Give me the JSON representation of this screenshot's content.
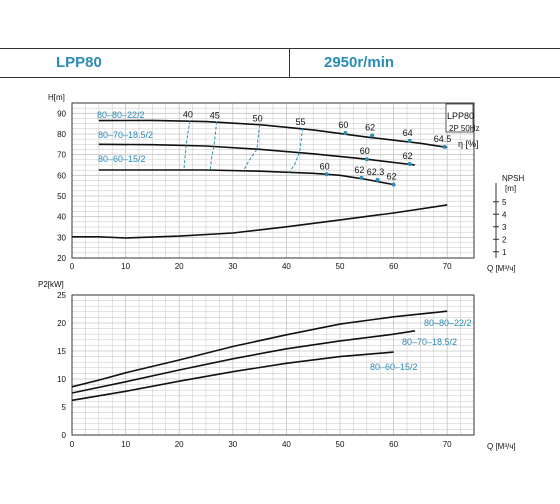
{
  "header": {
    "model": "LPP80",
    "speed": "2950r/min"
  },
  "legend_box": {
    "title": "LPP80",
    "subtitle": "2P  50Hz"
  },
  "colors": {
    "accent": "#2a8bb4",
    "curve": "#111111",
    "grid": "#c4c4c4"
  },
  "chart_data": [
    {
      "type": "line",
      "title": "",
      "ylabel": "H[m]",
      "xlabel": "Q [М³/ч]",
      "xlim": [
        0,
        75
      ],
      "ylim": [
        20,
        95
      ],
      "xticks": [
        "0",
        "10",
        "20",
        "30",
        "40",
        "50",
        "60",
        "70"
      ],
      "yticks": [
        "20",
        "30",
        "40",
        "50",
        "60",
        "70",
        "80",
        "90"
      ],
      "series": [
        {
          "name": "80–80–22/2",
          "x": [
            5,
            15,
            25,
            35,
            45,
            55,
            65,
            70
          ],
          "values": [
            86.5,
            86.6,
            86,
            84.5,
            82,
            78.5,
            75.5,
            73.5
          ]
        },
        {
          "name": "80–70–18.5/2",
          "x": [
            5,
            15,
            25,
            35,
            45,
            55,
            64
          ],
          "values": [
            75,
            74.8,
            74.2,
            72.6,
            70.4,
            67.8,
            65
          ]
        },
        {
          "name": "80–60–15/2",
          "x": [
            5,
            15,
            25,
            35,
            45,
            50,
            55,
            60
          ],
          "values": [
            62.6,
            62.6,
            62.6,
            62,
            61,
            60,
            58,
            55.5
          ]
        }
      ],
      "efficiency": {
        "label": "η [%]",
        "iso": [
          {
            "label": "40",
            "x": [
              22,
              21.3,
              21.1,
              20.9
            ],
            "values": [
              86.5,
              75,
              69,
              62.6
            ]
          },
          {
            "label": "45",
            "x": [
              27,
              26.5,
              26,
              25.8
            ],
            "values": [
              86,
              74.2,
              68,
              62.6
            ]
          },
          {
            "label": "50",
            "x": [
              35,
              34.5,
              33,
              32
            ],
            "values": [
              84.5,
              72.6,
              67,
              62.4
            ]
          },
          {
            "label": "55",
            "x": [
              43,
              42.5,
              41.5,
              40.5
            ],
            "values": [
              82.8,
              71.4,
              65,
              61.4
            ]
          }
        ],
        "points": [
          {
            "label": "60",
            "x": 51,
            "value": 80.5
          },
          {
            "label": "62",
            "x": 56,
            "value": 79.3
          },
          {
            "label": "64",
            "x": 63,
            "value": 76.7
          },
          {
            "label": "64.5",
            "x": 69.5,
            "value": 73.8
          },
          {
            "label": "60",
            "x": 55,
            "value": 67.8
          },
          {
            "label": "62",
            "x": 63,
            "value": 65.5
          },
          {
            "label": "60",
            "x": 47.5,
            "value": 60.5
          },
          {
            "label": "62",
            "x": 54,
            "value": 58.8
          },
          {
            "label": "62.3",
            "x": 57,
            "value": 57.8
          },
          {
            "label": "62",
            "x": 60,
            "value": 55.5
          }
        ]
      },
      "npsh": {
        "label": "NPSH",
        "unit": "[m]",
        "yticks": [
          "1",
          "2",
          "3",
          "4",
          "5"
        ],
        "ylim": [
          0.5,
          6.5
        ],
        "x": [
          0,
          5,
          10,
          20,
          30,
          40,
          50,
          60,
          70
        ],
        "values": [
          2.2,
          2.2,
          2.1,
          2.25,
          2.5,
          3.0,
          3.55,
          4.1,
          4.75
        ]
      }
    },
    {
      "type": "line",
      "title": "",
      "ylabel": "P2[kW]",
      "xlabel": "Q [М³/ч]",
      "xlim": [
        0,
        75
      ],
      "ylim": [
        0,
        25
      ],
      "xticks": [
        "0",
        "10",
        "20",
        "30",
        "40",
        "50",
        "60",
        "70"
      ],
      "yticks": [
        "0",
        "5",
        "10",
        "15",
        "20",
        "25"
      ],
      "series": [
        {
          "name": "80–80–22/2",
          "x": [
            0,
            5,
            10,
            20,
            30,
            40,
            50,
            60,
            70
          ],
          "values": [
            8.6,
            9.8,
            11.1,
            13.4,
            15.8,
            17.9,
            19.8,
            21.1,
            22.1
          ]
        },
        {
          "name": "80–70–18.5/2",
          "x": [
            0,
            5,
            10,
            20,
            30,
            40,
            50,
            60,
            64
          ],
          "values": [
            7.5,
            8.5,
            9.5,
            11.6,
            13.6,
            15.4,
            16.8,
            18.0,
            18.6
          ]
        },
        {
          "name": "80–60–15/2",
          "x": [
            0,
            5,
            10,
            20,
            30,
            40,
            50,
            60
          ],
          "values": [
            6.2,
            7.0,
            7.8,
            9.6,
            11.3,
            12.8,
            14.0,
            14.8
          ]
        }
      ]
    }
  ]
}
